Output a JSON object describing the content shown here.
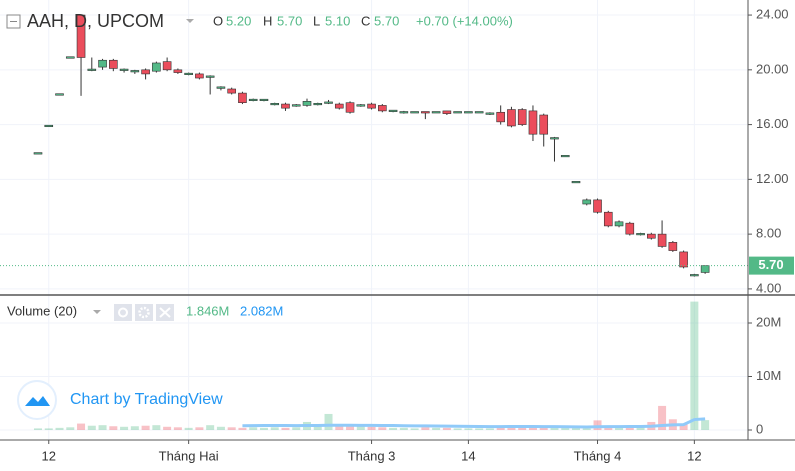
{
  "chart_data": {
    "type": "candlestick",
    "symbol": "AAH, D, UPCOM",
    "header": {
      "open_key": "O",
      "open": "5.20",
      "high_key": "H",
      "high": "5.70",
      "low_key": "L",
      "low": "5.10",
      "close_key": "C",
      "close": "5.70",
      "change": "+0.70 (+14.00%)"
    },
    "last_price_label": "5.70",
    "up_color": "#53b987",
    "down_color": "#eb4d5c",
    "open": [
      13.9,
      15.9,
      18.2,
      20.9,
      24.0,
      20.0,
      20.2,
      20.7,
      20.0,
      19.9,
      20.0,
      19.9,
      20.6,
      20.0,
      19.7,
      19.7,
      19.5,
      18.7,
      18.6,
      18.3,
      17.8,
      17.8,
      17.5,
      17.5,
      17.4,
      17.4,
      17.5,
      17.6,
      17.5,
      17.6,
      17.4,
      17.5,
      17.4,
      17.0,
      16.9,
      16.9,
      16.9,
      16.9,
      17.0,
      16.9,
      16.9,
      16.9,
      16.8,
      16.9,
      17.1,
      17.1,
      17.0,
      16.7,
      15.0,
      13.7,
      11.8,
      10.2,
      10.5,
      9.6,
      8.6,
      8.8,
      8.0,
      8.0,
      8.0,
      7.4,
      6.7,
      5.0,
      5.2
    ],
    "high": [
      13.9,
      15.9,
      18.2,
      20.9,
      24.0,
      20.9,
      20.8,
      20.8,
      20.1,
      20.0,
      20.1,
      20.6,
      20.9,
      20.1,
      19.8,
      19.8,
      19.6,
      18.8,
      18.7,
      18.4,
      17.9,
      17.8,
      17.6,
      17.6,
      17.5,
      17.9,
      17.6,
      17.8,
      17.6,
      17.7,
      17.5,
      17.6,
      17.5,
      17.0,
      17.0,
      16.9,
      16.9,
      16.9,
      17.0,
      16.9,
      16.9,
      16.9,
      16.9,
      17.4,
      17.3,
      17.2,
      17.4,
      16.8,
      15.1,
      13.7,
      11.8,
      10.6,
      10.6,
      9.7,
      9.0,
      8.9,
      8.1,
      8.1,
      9.0,
      7.5,
      6.8,
      5.1,
      5.7
    ],
    "low": [
      13.9,
      15.9,
      18.2,
      20.9,
      18.1,
      19.9,
      20.0,
      19.9,
      19.8,
      19.7,
      19.3,
      19.8,
      19.9,
      19.7,
      19.6,
      19.3,
      18.2,
      18.5,
      18.2,
      17.5,
      17.7,
      17.7,
      17.4,
      17.0,
      17.3,
      17.3,
      17.4,
      17.5,
      17.1,
      16.8,
      17.3,
      17.1,
      16.9,
      16.9,
      16.8,
      16.9,
      16.4,
      16.9,
      16.7,
      16.9,
      16.9,
      16.9,
      16.7,
      16.0,
      15.8,
      15.9,
      14.8,
      14.4,
      13.3,
      13.7,
      11.8,
      10.1,
      9.5,
      8.5,
      8.5,
      7.9,
      7.9,
      7.6,
      7.0,
      6.7,
      5.5,
      4.9,
      5.1
    ],
    "close": [
      13.9,
      15.9,
      18.2,
      20.9,
      20.9,
      20.0,
      20.7,
      20.1,
      20.0,
      19.9,
      19.7,
      20.5,
      20.0,
      19.8,
      19.7,
      19.4,
      19.5,
      18.7,
      18.3,
      17.6,
      17.8,
      17.8,
      17.5,
      17.2,
      17.4,
      17.7,
      17.5,
      17.6,
      17.2,
      16.9,
      17.4,
      17.2,
      17.0,
      17.0,
      16.9,
      16.9,
      16.8,
      16.9,
      16.8,
      16.9,
      16.9,
      16.9,
      16.8,
      16.2,
      15.9,
      16.0,
      15.3,
      15.3,
      15.0,
      13.7,
      11.8,
      10.5,
      9.6,
      8.6,
      8.9,
      8.0,
      8.0,
      7.7,
      7.1,
      6.8,
      5.6,
      5.0,
      5.7
    ],
    "xticks": [
      {
        "value": 1,
        "label": "12"
      },
      {
        "value": 14,
        "label": "Tháng Hai"
      },
      {
        "value": 31,
        "label": "Tháng 3"
      },
      {
        "value": 40,
        "label": "14"
      },
      {
        "value": 52,
        "label": "Tháng 4"
      },
      {
        "value": 61,
        "label": "12"
      }
    ],
    "ylim": [
      3.7,
      25.1
    ],
    "yticks": [
      {
        "value": 24,
        "label": "24.00"
      },
      {
        "value": 20,
        "label": "20.00"
      },
      {
        "value": 16,
        "label": "16.00"
      },
      {
        "value": 12,
        "label": "12.00"
      },
      {
        "value": 8,
        "label": "8.00"
      },
      {
        "value": 4,
        "label": "4.00"
      }
    ],
    "volume": {
      "title": "Volume (20)",
      "legend_volume": "1.846M",
      "legend_ma": "2.082M",
      "ma_color": "#90caf9",
      "values": [
        300000,
        300000,
        400000,
        500000,
        1200000,
        800000,
        900000,
        700000,
        600000,
        700000,
        800000,
        900000,
        600000,
        500000,
        400000,
        500000,
        900000,
        600000,
        500000,
        400000,
        500000,
        400000,
        500000,
        400000,
        500000,
        1500000,
        700000,
        3000000,
        1000000,
        900000,
        700000,
        600000,
        500000,
        400000,
        400000,
        300000,
        500000,
        400000,
        400000,
        300000,
        300000,
        300000,
        300000,
        500000,
        600000,
        700000,
        500000,
        600000,
        500000,
        400000,
        400000,
        300000,
        1800000,
        700000,
        500000,
        600000,
        500000,
        1500000,
        4500000,
        2000000,
        1200000,
        24000000,
        1846000
      ],
      "ma": [
        null,
        null,
        null,
        null,
        null,
        null,
        null,
        null,
        null,
        null,
        null,
        null,
        null,
        null,
        null,
        null,
        null,
        null,
        null,
        800000,
        820000,
        830000,
        840000,
        830000,
        820000,
        850000,
        850000,
        880000,
        880000,
        880000,
        870000,
        860000,
        850000,
        830000,
        800000,
        780000,
        760000,
        740000,
        720000,
        700000,
        680000,
        660000,
        640000,
        640000,
        650000,
        660000,
        650000,
        640000,
        620000,
        600000,
        580000,
        560000,
        600000,
        620000,
        640000,
        650000,
        660000,
        700000,
        850000,
        950000,
        1000000,
        1950000,
        2082000
      ],
      "ylim": [
        -1870000,
        24860000
      ],
      "yticks": [
        0,
        {
          "value": 10000000,
          "label": "10M"
        },
        {
          "value": 20000000,
          "label": "20M"
        }
      ]
    },
    "watermark": "Chart by TradingView"
  }
}
